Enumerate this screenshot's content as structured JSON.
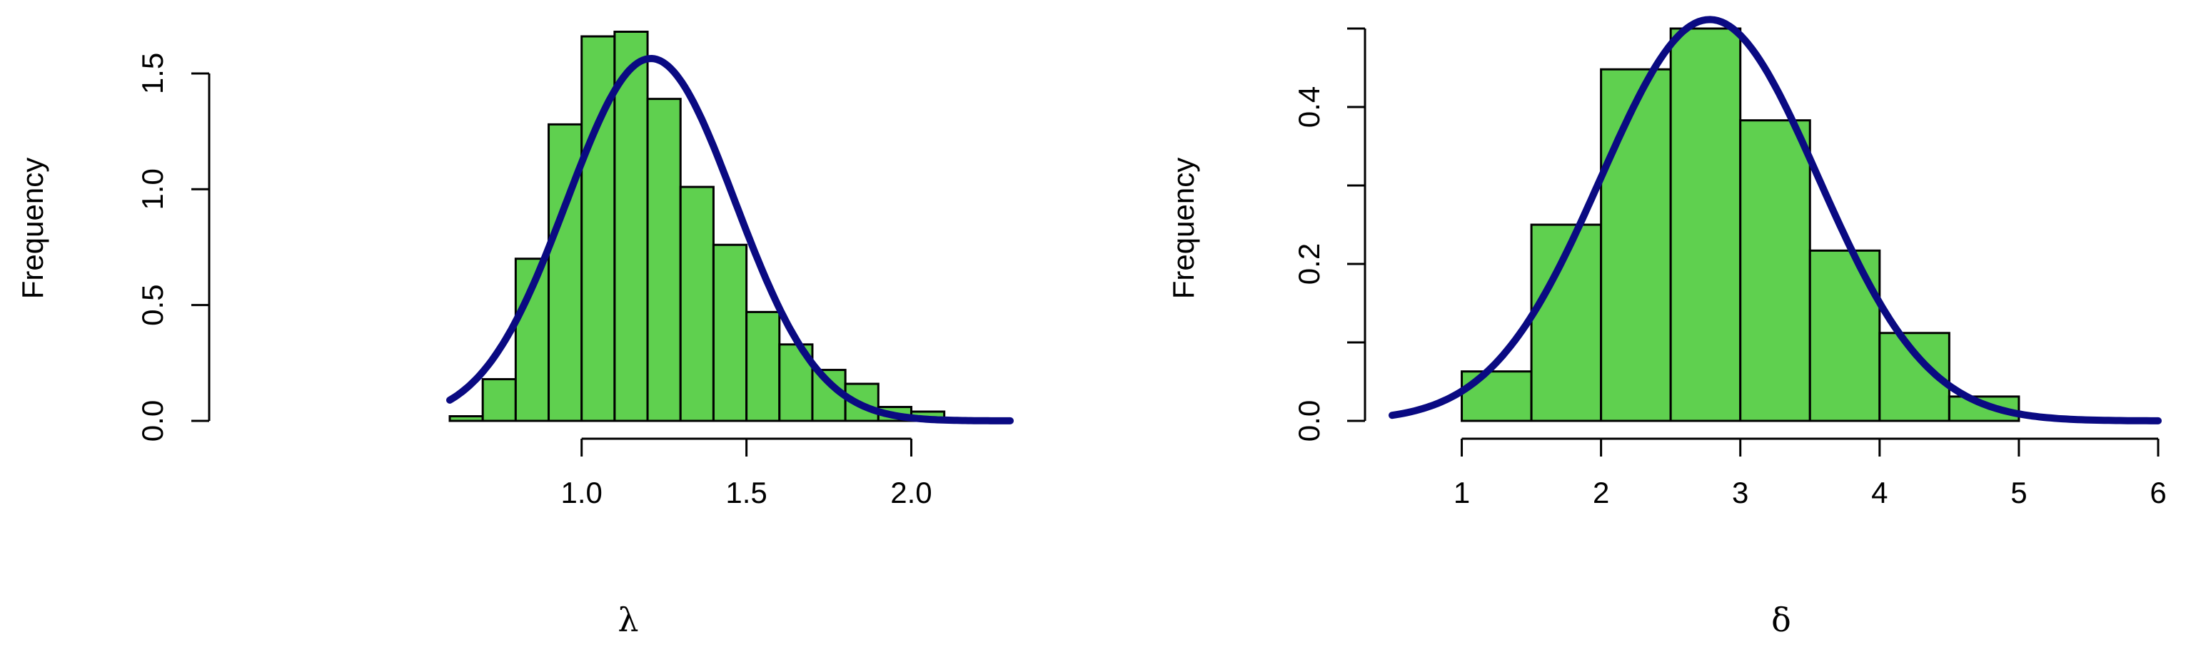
{
  "colors": {
    "bar_fill": "#5fd04f",
    "bar_stroke": "#000000",
    "curve": "#0a0a82",
    "axis": "#000000"
  },
  "chart_data": [
    {
      "type": "bar",
      "title": "",
      "xlabel": "λ",
      "ylabel": "Frequency",
      "bins": [
        {
          "x0": 0.6,
          "x1": 0.7,
          "y": 0.02
        },
        {
          "x0": 0.7,
          "x1": 0.8,
          "y": 0.18
        },
        {
          "x0": 0.8,
          "x1": 0.9,
          "y": 0.7
        },
        {
          "x0": 0.9,
          "x1": 1.0,
          "y": 1.28
        },
        {
          "x0": 1.0,
          "x1": 1.1,
          "y": 1.66
        },
        {
          "x0": 1.1,
          "x1": 1.2,
          "y": 1.68
        },
        {
          "x0": 1.2,
          "x1": 1.3,
          "y": 1.39
        },
        {
          "x0": 1.3,
          "x1": 1.4,
          "y": 1.01
        },
        {
          "x0": 1.4,
          "x1": 1.5,
          "y": 0.76
        },
        {
          "x0": 1.5,
          "x1": 1.6,
          "y": 0.47
        },
        {
          "x0": 1.6,
          "x1": 1.7,
          "y": 0.33
        },
        {
          "x0": 1.7,
          "x1": 1.8,
          "y": 0.22
        },
        {
          "x0": 1.8,
          "x1": 1.9,
          "y": 0.16
        },
        {
          "x0": 1.9,
          "x1": 2.0,
          "y": 0.06
        },
        {
          "x0": 2.0,
          "x1": 2.1,
          "y": 0.04
        }
      ],
      "curve": {
        "type": "normal_density",
        "mean": 1.21,
        "sd": 0.255,
        "x_range": [
          0.6,
          2.3
        ]
      },
      "xlim": [
        0.6,
        2.3
      ],
      "ylim": [
        0,
        1.7
      ],
      "xticks": [
        {
          "value": 1.0,
          "label": "1.0"
        },
        {
          "value": 1.5,
          "label": "1.5"
        },
        {
          "value": 2.0,
          "label": "2.0"
        }
      ],
      "yticks": [
        {
          "value": 0.0,
          "label": "0.0"
        },
        {
          "value": 0.5,
          "label": "0.5"
        },
        {
          "value": 1.0,
          "label": "1.0"
        },
        {
          "value": 1.5,
          "label": "1.5"
        }
      ],
      "grid": false
    },
    {
      "type": "bar",
      "title": "",
      "xlabel": "δ",
      "ylabel": "Frequency",
      "bins": [
        {
          "x0": 1.0,
          "x1": 1.5,
          "y": 0.063
        },
        {
          "x0": 1.5,
          "x1": 2.0,
          "y": 0.25
        },
        {
          "x0": 2.0,
          "x1": 2.5,
          "y": 0.448
        },
        {
          "x0": 2.5,
          "x1": 3.0,
          "y": 0.5
        },
        {
          "x0": 3.0,
          "x1": 3.5,
          "y": 0.383
        },
        {
          "x0": 3.5,
          "x1": 4.0,
          "y": 0.217
        },
        {
          "x0": 4.0,
          "x1": 4.5,
          "y": 0.112
        },
        {
          "x0": 4.5,
          "x1": 5.0,
          "y": 0.031
        }
      ],
      "curve": {
        "type": "normal_density",
        "mean": 2.78,
        "sd": 0.78,
        "x_range": [
          0.5,
          6.0
        ]
      },
      "xlim": [
        0.5,
        6.0
      ],
      "ylim": [
        0,
        0.5
      ],
      "xticks": [
        {
          "value": 1,
          "label": "1"
        },
        {
          "value": 2,
          "label": "2"
        },
        {
          "value": 3,
          "label": "3"
        },
        {
          "value": 4,
          "label": "4"
        },
        {
          "value": 5,
          "label": "5"
        },
        {
          "value": 6,
          "label": "6"
        }
      ],
      "yticks": [
        {
          "value": 0.0,
          "label": "0.0"
        },
        {
          "value": 0.1,
          "label": ""
        },
        {
          "value": 0.2,
          "label": "0.2"
        },
        {
          "value": 0.3,
          "label": ""
        },
        {
          "value": 0.4,
          "label": "0.4"
        },
        {
          "value": 0.5,
          "label": ""
        }
      ],
      "grid": false
    }
  ]
}
